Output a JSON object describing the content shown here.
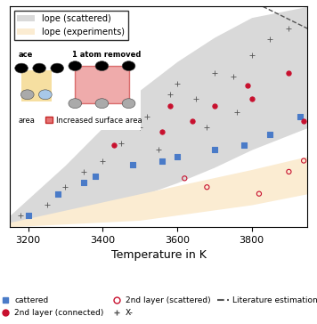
{
  "chart_data": {
    "type": "scatter",
    "xlabel": "Temperature in K",
    "xlim": [
      3150,
      3950
    ],
    "xticks": [
      3200,
      3400,
      3600,
      3800
    ],
    "ylim": [
      0,
      1
    ],
    "yticks": [],
    "tick_labels": "x",
    "legend": "upper left",
    "annotations": [
      "ace",
      "1 atom removed",
      "area",
      "Increased surface area"
    ],
    "series": [
      {
        "name": "lope (scattered)",
        "type": "band",
        "color": "#d9d9d9",
        "x": [
          3150,
          3300,
          3400,
          3500,
          3600,
          3700,
          3800,
          3950
        ],
        "lower": [
          0.0,
          0.05,
          0.09,
          0.14,
          0.2,
          0.27,
          0.35,
          0.45
        ],
        "upper": [
          0.05,
          0.28,
          0.45,
          0.62,
          0.75,
          0.86,
          0.95,
          1.0
        ]
      },
      {
        "name": "lope (experiments)",
        "type": "band",
        "color": "#fbecd2",
        "x": [
          3150,
          3500,
          3800,
          3950
        ],
        "lower": [
          0.0,
          0.03,
          0.1,
          0.15
        ],
        "upper": [
          0.02,
          0.15,
          0.26,
          0.32
        ]
      },
      {
        "name": "cattered",
        "type": "scatter",
        "color": "#4a7bc8",
        "marker": "filled_square",
        "x": [
          3200,
          3280,
          3350,
          3380,
          3480,
          3560,
          3600,
          3700,
          3780,
          3850,
          3930
        ],
        "values": [
          0.05,
          0.15,
          0.2,
          0.23,
          0.28,
          0.3,
          0.32,
          0.35,
          0.37,
          0.42,
          0.5
        ]
      },
      {
        "name": "2nd layer (connected)",
        "type": "scatter",
        "color": "#c8102e",
        "marker": "filled_circle",
        "x": [
          3430,
          3560,
          3580,
          3640,
          3700,
          3790,
          3800,
          3900,
          3940
        ],
        "values": [
          0.37,
          0.43,
          0.55,
          0.48,
          0.55,
          0.64,
          0.58,
          0.7,
          0.48
        ]
      },
      {
        "name": "2nd layer (scattered)",
        "type": "scatter",
        "color": "#c8102e",
        "marker": "open_circle",
        "x": [
          3620,
          3680,
          3820,
          3900,
          3940
        ],
        "values": [
          0.22,
          0.18,
          0.15,
          0.25,
          0.3
        ]
      },
      {
        "name": "X-",
        "type": "scatter",
        "color": "#555555",
        "marker": "plus",
        "x": [
          3180,
          3250,
          3300,
          3350,
          3400,
          3450,
          3500,
          3520,
          3580,
          3600,
          3650,
          3700,
          3750,
          3800,
          3850,
          3900,
          3550,
          3680,
          3760
        ],
        "values": [
          0.05,
          0.1,
          0.18,
          0.25,
          0.3,
          0.38,
          0.45,
          0.5,
          0.6,
          0.65,
          0.58,
          0.7,
          0.68,
          0.78,
          0.85,
          0.9,
          0.35,
          0.45,
          0.52
        ]
      },
      {
        "name": "Literature estimation",
        "type": "line",
        "color": "#555555",
        "line_style": "dashed",
        "x": [
          3830,
          3950
        ],
        "values": [
          1.0,
          0.9
        ]
      }
    ]
  }
}
